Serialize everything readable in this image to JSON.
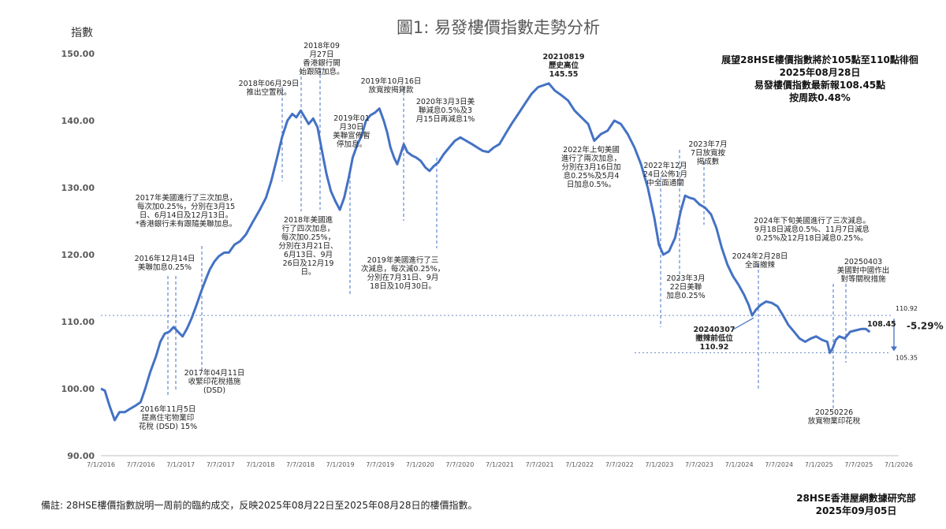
{
  "header": {
    "title": "圖1: 易發樓價指數走勢分析",
    "y_unit": "指數"
  },
  "info_box": {
    "line1": "展望28HSE樓價指數將於105點至110點徘徊",
    "line2": "2025年08月28日",
    "line3": "易發樓價指數最新報108.45點",
    "line4": "按周跌0.48%"
  },
  "footer": {
    "note": "備註: 28HSE樓價指數說明一周前的臨約成交，反映2025年08月22日至2025年08月28日的樓價指數。",
    "org": "28HSE香港屋網數據研究部",
    "date": "2025年09月05日"
  },
  "chart_data": {
    "type": "line",
    "title": "圖1: 易發樓價指數走勢分析",
    "ylabel": "指數",
    "ylim": [
      90,
      150
    ],
    "y_ticks": [
      "90.00",
      "100.00",
      "110.00",
      "120.00",
      "130.00",
      "140.00",
      "150.00"
    ],
    "x_ticks": [
      "7/1/2016",
      "7/7/2016",
      "7/1/2017",
      "7/7/2017",
      "7/1/2018",
      "7/7/2018",
      "7/1/2019",
      "7/7/2019",
      "7/1/2020",
      "7/7/2020",
      "7/1/2021",
      "7/7/2021",
      "7/1/2022",
      "7/7/2022",
      "7/1/2023",
      "7/7/2023",
      "7/1/2024",
      "7/7/2024",
      "7/1/2025",
      "7/7/2025",
      "7/1/2026"
    ],
    "color": "#4472c4",
    "series": [
      {
        "values": [
          [
            "2016-01-07",
            100.0
          ],
          [
            "2016-01-25",
            99.7
          ],
          [
            "2016-02-15",
            97.5
          ],
          [
            "2016-03-10",
            95.3
          ],
          [
            "2016-04-01",
            96.5
          ],
          [
            "2016-04-25",
            96.5
          ],
          [
            "2016-05-20",
            97.0
          ],
          [
            "2016-06-15",
            97.5
          ],
          [
            "2016-07-07",
            98.0
          ],
          [
            "2016-07-28",
            100.0
          ],
          [
            "2016-08-20",
            102.5
          ],
          [
            "2016-09-15",
            104.8
          ],
          [
            "2016-10-05",
            107.0
          ],
          [
            "2016-10-25",
            108.2
          ],
          [
            "2016-11-15",
            108.5
          ],
          [
            "2016-12-05",
            109.2
          ],
          [
            "2016-12-25",
            108.5
          ],
          [
            "2017-01-15",
            107.8
          ],
          [
            "2017-02-05",
            109.0
          ],
          [
            "2017-02-25",
            110.5
          ],
          [
            "2017-03-20",
            112.5
          ],
          [
            "2017-04-10",
            114.5
          ],
          [
            "2017-05-01",
            116.3
          ],
          [
            "2017-05-20",
            117.8
          ],
          [
            "2017-06-10",
            119.0
          ],
          [
            "2017-07-01",
            119.8
          ],
          [
            "2017-07-25",
            120.3
          ],
          [
            "2017-08-15",
            120.3
          ],
          [
            "2017-09-10",
            121.5
          ],
          [
            "2017-10-05",
            122.0
          ],
          [
            "2017-11-01",
            123.0
          ],
          [
            "2017-12-01",
            124.8
          ],
          [
            "2018-01-05",
            126.8
          ],
          [
            "2018-02-01",
            128.5
          ],
          [
            "2018-02-25",
            131.0
          ],
          [
            "2018-03-20",
            134.0
          ],
          [
            "2018-04-15",
            137.5
          ],
          [
            "2018-05-10",
            140.0
          ],
          [
            "2018-06-01",
            141.0
          ],
          [
            "2018-06-20",
            140.5
          ],
          [
            "2018-07-10",
            141.5
          ],
          [
            "2018-07-28",
            140.5
          ],
          [
            "2018-08-15",
            139.5
          ],
          [
            "2018-09-05",
            140.3
          ],
          [
            "2018-09-25",
            139.0
          ],
          [
            "2018-10-15",
            135.5
          ],
          [
            "2018-11-05",
            132.0
          ],
          [
            "2018-11-25",
            129.5
          ],
          [
            "2018-12-15",
            128.0
          ],
          [
            "2019-01-05",
            126.7
          ],
          [
            "2019-01-25",
            128.5
          ],
          [
            "2019-02-15",
            131.5
          ],
          [
            "2019-03-05",
            134.5
          ],
          [
            "2019-03-25",
            136.3
          ],
          [
            "2019-04-15",
            137.8
          ],
          [
            "2019-05-05",
            140.0
          ],
          [
            "2019-05-25",
            140.8
          ],
          [
            "2019-06-15",
            141.2
          ],
          [
            "2019-07-05",
            141.8
          ],
          [
            "2019-07-25",
            140.0
          ],
          [
            "2019-08-10",
            138.2
          ],
          [
            "2019-08-25",
            136.0
          ],
          [
            "2019-09-10",
            134.5
          ],
          [
            "2019-09-25",
            133.5
          ],
          [
            "2019-10-10",
            135.0
          ],
          [
            "2019-10-25",
            136.5
          ],
          [
            "2019-11-10",
            135.3
          ],
          [
            "2019-12-01",
            134.8
          ],
          [
            "2019-12-20",
            134.5
          ],
          [
            "2020-01-10",
            134.0
          ],
          [
            "2020-02-01",
            133.0
          ],
          [
            "2020-02-20",
            132.5
          ],
          [
            "2020-03-10",
            133.2
          ],
          [
            "2020-04-01",
            133.8
          ],
          [
            "2020-04-25",
            135.0
          ],
          [
            "2020-05-20",
            136.0
          ],
          [
            "2020-06-15",
            137.0
          ],
          [
            "2020-07-10",
            137.5
          ],
          [
            "2020-08-05",
            137.0
          ],
          [
            "2020-09-01",
            136.5
          ],
          [
            "2020-09-25",
            136.0
          ],
          [
            "2020-10-20",
            135.5
          ],
          [
            "2020-11-15",
            135.3
          ],
          [
            "2020-12-10",
            136.0
          ],
          [
            "2021-01-05",
            136.5
          ],
          [
            "2021-02-01",
            138.0
          ],
          [
            "2021-03-01",
            139.5
          ],
          [
            "2021-04-01",
            141.0
          ],
          [
            "2021-05-01",
            142.5
          ],
          [
            "2021-06-01",
            144.0
          ],
          [
            "2021-07-01",
            145.0
          ],
          [
            "2021-08-19",
            145.55
          ],
          [
            "2021-09-15",
            144.5
          ],
          [
            "2021-10-15",
            143.8
          ],
          [
            "2021-11-15",
            143.0
          ],
          [
            "2021-12-15",
            141.5
          ],
          [
            "2022-01-15",
            140.5
          ],
          [
            "2022-02-15",
            139.5
          ],
          [
            "2022-03-15",
            137.0
          ],
          [
            "2022-04-15",
            138.0
          ],
          [
            "2022-05-15",
            138.5
          ],
          [
            "2022-06-15",
            140.0
          ],
          [
            "2022-07-15",
            139.5
          ],
          [
            "2022-08-15",
            138.0
          ],
          [
            "2022-09-15",
            136.0
          ],
          [
            "2022-10-15",
            133.5
          ],
          [
            "2022-11-15",
            130.0
          ],
          [
            "2022-12-15",
            125.5
          ],
          [
            "2023-01-05",
            121.5
          ],
          [
            "2023-01-25",
            120.0
          ],
          [
            "2023-02-20",
            120.5
          ],
          [
            "2023-03-20",
            122.5
          ],
          [
            "2023-04-15",
            126.5
          ],
          [
            "2023-05-05",
            128.8
          ],
          [
            "2023-05-25",
            128.5
          ],
          [
            "2023-06-15",
            128.3
          ],
          [
            "2023-07-10",
            127.5
          ],
          [
            "2023-08-05",
            127.0
          ],
          [
            "2023-09-01",
            126.0
          ],
          [
            "2023-09-25",
            124.0
          ],
          [
            "2023-10-20",
            121.0
          ],
          [
            "2023-11-15",
            118.5
          ],
          [
            "2023-12-10",
            116.8
          ],
          [
            "2024-01-05",
            115.5
          ],
          [
            "2024-01-30",
            114.0
          ],
          [
            "2024-02-20",
            112.5
          ],
          [
            "2024-03-07",
            110.92
          ],
          [
            "2024-03-25",
            111.8
          ],
          [
            "2024-04-15",
            112.5
          ],
          [
            "2024-05-10",
            113.0
          ],
          [
            "2024-06-05",
            112.8
          ],
          [
            "2024-07-01",
            112.3
          ],
          [
            "2024-07-25",
            111.0
          ],
          [
            "2024-08-20",
            109.5
          ],
          [
            "2024-09-15",
            108.5
          ],
          [
            "2024-10-10",
            107.5
          ],
          [
            "2024-11-05",
            107.0
          ],
          [
            "2024-12-01",
            107.5
          ],
          [
            "2024-12-25",
            107.8
          ],
          [
            "2025-01-20",
            107.3
          ],
          [
            "2025-02-14",
            107.0
          ],
          [
            "2025-02-26",
            105.35
          ],
          [
            "2025-03-10",
            106.0
          ],
          [
            "2025-03-25",
            107.3
          ],
          [
            "2025-04-10",
            107.8
          ],
          [
            "2025-05-05",
            107.5
          ],
          [
            "2025-05-30",
            108.5
          ],
          [
            "2025-06-25",
            108.7
          ],
          [
            "2025-07-20",
            108.9
          ],
          [
            "2025-08-10",
            108.9
          ],
          [
            "2025-08-28",
            108.45
          ]
        ]
      }
    ],
    "reference_lines": [
      {
        "label": "110.92",
        "value": 110.92
      },
      {
        "label": "105.35",
        "value": 105.35
      }
    ],
    "change_label": "-5.29%",
    "latest_label": "108.45",
    "peak": {
      "label1": "20210819",
      "label2": "歷史高位",
      "label3": "145.55"
    },
    "low": {
      "label1": "20240307",
      "label2": "撤辣前低位",
      "label3": "110.92"
    },
    "annotations": [
      {
        "lines": [
          "2016年11月5日",
          "提高住宅物業印",
          "花稅 (DSD) 15%"
        ]
      },
      {
        "lines": [
          "2016年12月14日",
          "美聯加息0.25%"
        ]
      },
      {
        "lines": [
          "2017年美國進行了三次加息，",
          "每次加0.25%，分別在3月15",
          "日、6月14日及12月13日。",
          "*香港銀行未有跟隨美聯加息。"
        ]
      },
      {
        "lines": [
          "2017年04月11日",
          "收緊印花稅措施",
          "(DSD)"
        ]
      },
      {
        "lines": [
          "2018年06月29日",
          "推出空置稅。"
        ]
      },
      {
        "lines": [
          "2018年09",
          "月27日",
          "香港銀行開",
          "始跟隨加息。"
        ]
      },
      {
        "lines": [
          "2018年美國進",
          "行了四次加息，",
          "每次加0.25%，",
          "分別在3月21日、",
          "6月13日、9月",
          "26日及12月19",
          "日。"
        ]
      },
      {
        "lines": [
          "2019年01",
          "月30日",
          "美聯宣佈暫",
          "停加息。"
        ]
      },
      {
        "lines": [
          "2019年10月16日",
          "放寬按揭貸款"
        ]
      },
      {
        "lines": [
          "2020年3月3日美",
          "聯減息0.5%及3",
          "月15日再減息1%"
        ]
      },
      {
        "lines": [
          "2019年美國進行了三",
          "次減息，每次減0.25%，",
          "分別在7月31日、9月",
          "18日及10月30日。"
        ]
      },
      {
        "lines": [
          "2022年上旬美國",
          "進行了兩次加息，",
          "分別在3月16日加",
          "息0.25%及5月4",
          "日加息0.5%。"
        ]
      },
      {
        "lines": [
          "2022年12月",
          "24日公佈1月",
          "中全面通關"
        ]
      },
      {
        "lines": [
          "2023年3月",
          "22日美聯",
          "加息0.25%"
        ]
      },
      {
        "lines": [
          "2023年7月",
          "7日放寬按",
          "揭成數"
        ]
      },
      {
        "lines": [
          "2024年下旬美國進行了三次減息。",
          "9月18日減息0.5%、11月7日減息",
          "0.25%及12月18日減息0.25%。"
        ]
      },
      {
        "lines": [
          "2024年2月28日",
          "全面撤辣"
        ]
      },
      {
        "lines": [
          "20250403",
          "美國對中國作出",
          "對等關稅措施"
        ]
      },
      {
        "lines": [
          "20250226",
          "放寬物業印花稅"
        ]
      }
    ]
  }
}
